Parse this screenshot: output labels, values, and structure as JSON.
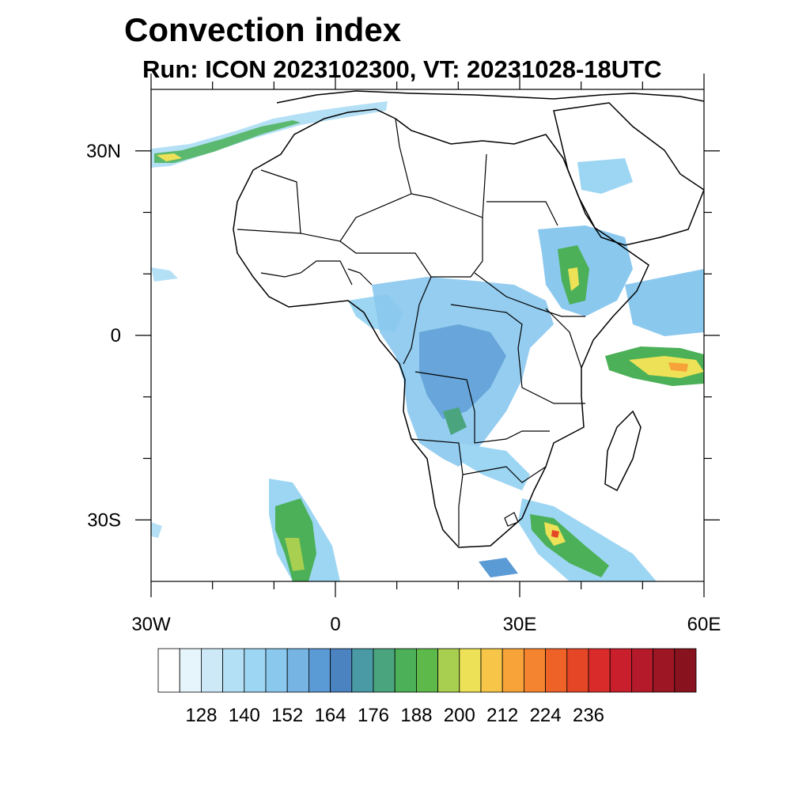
{
  "title": "Convection index",
  "subtitle": "Run: ICON 2023102300,  VT: 20231028-18UTC",
  "map": {
    "lon_range": [
      -30,
      60
    ],
    "lat_range": [
      -40,
      40
    ],
    "x_tick_labels": [
      {
        "lon": -30,
        "label": "30W"
      },
      {
        "lon": 0,
        "label": "0"
      },
      {
        "lon": 30,
        "label": "30E"
      },
      {
        "lon": 60,
        "label": "60E"
      }
    ],
    "y_tick_labels": [
      {
        "lat": 30,
        "label": "30N"
      },
      {
        "lat": 0,
        "label": "0"
      },
      {
        "lat": -30,
        "label": "30S"
      }
    ]
  },
  "colorbar": {
    "colors": [
      "#ffffff",
      "#e6f4fc",
      "#cde9f8",
      "#b4e0f6",
      "#9dd6f3",
      "#8ac8ee",
      "#75b4e3",
      "#5b9bd5",
      "#4a83c0",
      "#4a9aa5",
      "#4aa57e",
      "#4bb057",
      "#5db949",
      "#a8cf4f",
      "#ede257",
      "#f7c648",
      "#f7a33a",
      "#f48430",
      "#ee6228",
      "#e44626",
      "#d92c2a",
      "#c91f2c",
      "#b51a2a",
      "#9d1624",
      "#88131f"
    ],
    "labels": [
      "128",
      "140",
      "152",
      "164",
      "176",
      "188",
      "200",
      "212",
      "224",
      "236"
    ]
  }
}
